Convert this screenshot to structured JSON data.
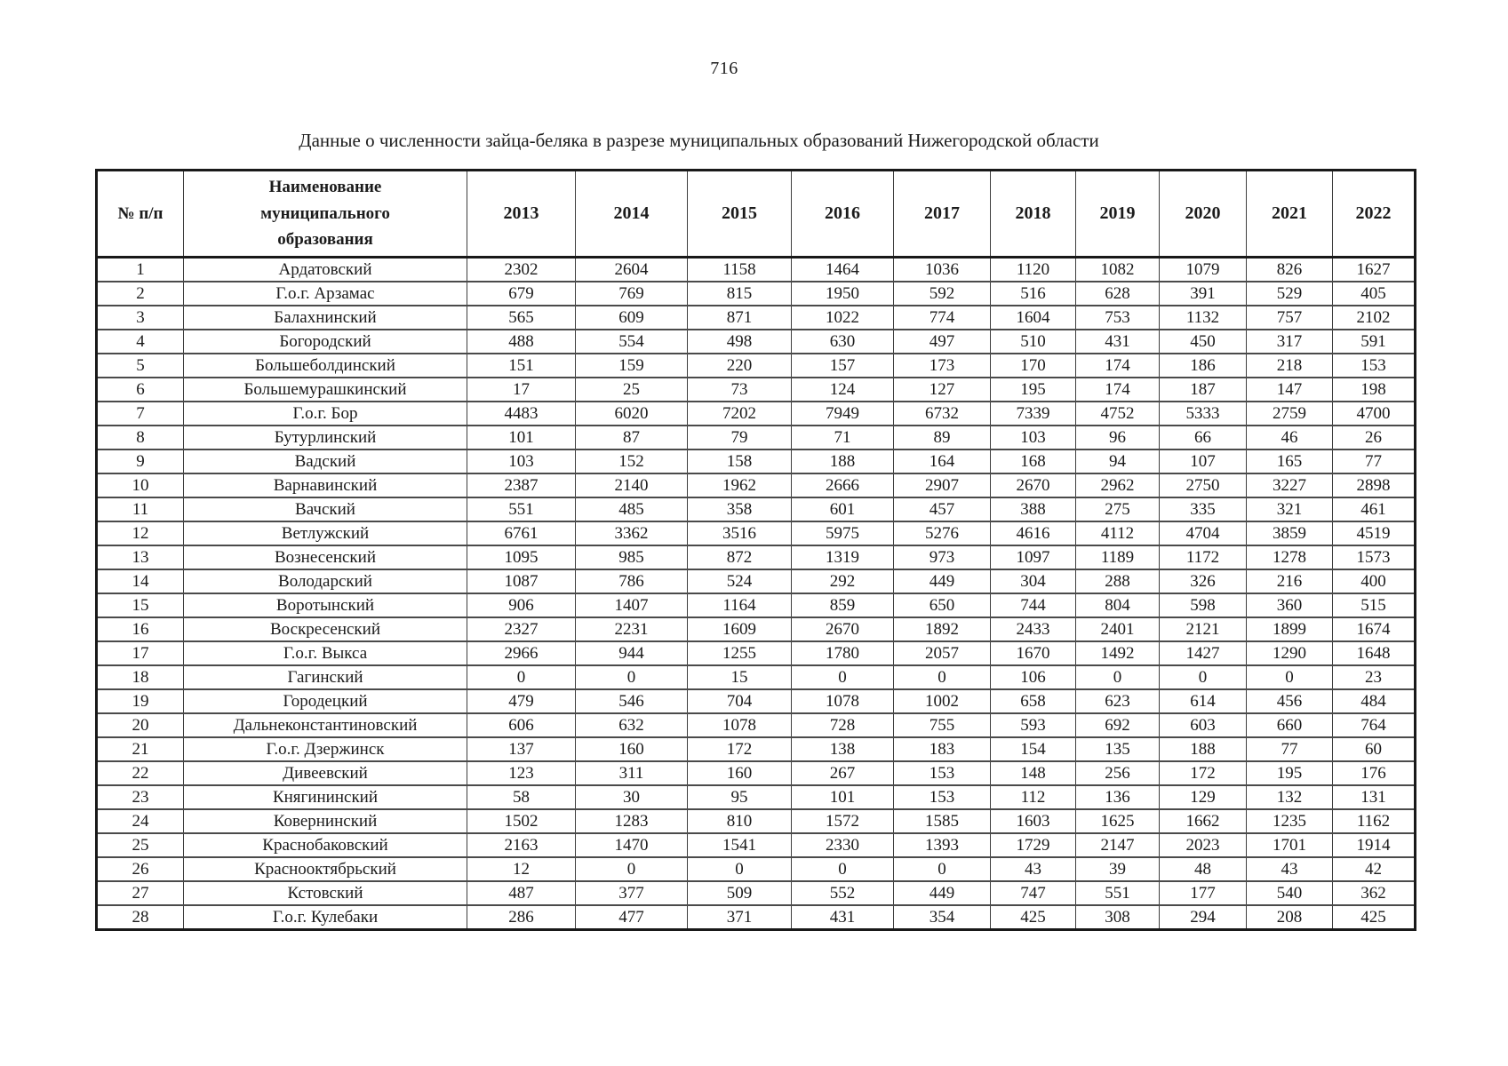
{
  "page": {
    "number": "716",
    "title": "Данные о численности зайца-беляка в разрезе муниципальных образований Нижегородской области"
  },
  "table": {
    "header": {
      "num_label": "№ п/п",
      "name_label": "Наименование\nмуниципального\nобразования",
      "years": [
        "2013",
        "2014",
        "2015",
        "2016",
        "2017",
        "2018",
        "2019",
        "2020",
        "2021",
        "2022"
      ]
    },
    "rows": [
      {
        "n": "1",
        "name": "Ардатовский",
        "values": [
          "2302",
          "2604",
          "1158",
          "1464",
          "1036",
          "1120",
          "1082",
          "1079",
          "826",
          "1627"
        ]
      },
      {
        "n": "2",
        "name": "Г.о.г. Арзамас",
        "values": [
          "679",
          "769",
          "815",
          "1950",
          "592",
          "516",
          "628",
          "391",
          "529",
          "405"
        ]
      },
      {
        "n": "3",
        "name": "Балахнинский",
        "values": [
          "565",
          "609",
          "871",
          "1022",
          "774",
          "1604",
          "753",
          "1132",
          "757",
          "2102"
        ]
      },
      {
        "n": "4",
        "name": "Богородский",
        "values": [
          "488",
          "554",
          "498",
          "630",
          "497",
          "510",
          "431",
          "450",
          "317",
          "591"
        ]
      },
      {
        "n": "5",
        "name": "Большеболдинский",
        "values": [
          "151",
          "159",
          "220",
          "157",
          "173",
          "170",
          "174",
          "186",
          "218",
          "153"
        ]
      },
      {
        "n": "6",
        "name": "Большемурашкинский",
        "values": [
          "17",
          "25",
          "73",
          "124",
          "127",
          "195",
          "174",
          "187",
          "147",
          "198"
        ]
      },
      {
        "n": "7",
        "name": "Г.о.г. Бор",
        "values": [
          "4483",
          "6020",
          "7202",
          "7949",
          "6732",
          "7339",
          "4752",
          "5333",
          "2759",
          "4700"
        ]
      },
      {
        "n": "8",
        "name": "Бутурлинский",
        "values": [
          "101",
          "87",
          "79",
          "71",
          "89",
          "103",
          "96",
          "66",
          "46",
          "26"
        ]
      },
      {
        "n": "9",
        "name": "Вадский",
        "values": [
          "103",
          "152",
          "158",
          "188",
          "164",
          "168",
          "94",
          "107",
          "165",
          "77"
        ]
      },
      {
        "n": "10",
        "name": "Варнавинский",
        "values": [
          "2387",
          "2140",
          "1962",
          "2666",
          "2907",
          "2670",
          "2962",
          "2750",
          "3227",
          "2898"
        ]
      },
      {
        "n": "11",
        "name": "Вачский",
        "values": [
          "551",
          "485",
          "358",
          "601",
          "457",
          "388",
          "275",
          "335",
          "321",
          "461"
        ]
      },
      {
        "n": "12",
        "name": "Ветлужский",
        "values": [
          "6761",
          "3362",
          "3516",
          "5975",
          "5276",
          "4616",
          "4112",
          "4704",
          "3859",
          "4519"
        ]
      },
      {
        "n": "13",
        "name": "Вознесенский",
        "values": [
          "1095",
          "985",
          "872",
          "1319",
          "973",
          "1097",
          "1189",
          "1172",
          "1278",
          "1573"
        ]
      },
      {
        "n": "14",
        "name": "Володарский",
        "values": [
          "1087",
          "786",
          "524",
          "292",
          "449",
          "304",
          "288",
          "326",
          "216",
          "400"
        ]
      },
      {
        "n": "15",
        "name": "Воротынский",
        "values": [
          "906",
          "1407",
          "1164",
          "859",
          "650",
          "744",
          "804",
          "598",
          "360",
          "515"
        ]
      },
      {
        "n": "16",
        "name": "Воскресенский",
        "values": [
          "2327",
          "2231",
          "1609",
          "2670",
          "1892",
          "2433",
          "2401",
          "2121",
          "1899",
          "1674"
        ]
      },
      {
        "n": "17",
        "name": "Г.о.г. Выкса",
        "values": [
          "2966",
          "944",
          "1255",
          "1780",
          "2057",
          "1670",
          "1492",
          "1427",
          "1290",
          "1648"
        ]
      },
      {
        "n": "18",
        "name": "Гагинский",
        "values": [
          "0",
          "0",
          "15",
          "0",
          "0",
          "106",
          "0",
          "0",
          "0",
          "23"
        ]
      },
      {
        "n": "19",
        "name": "Городецкий",
        "values": [
          "479",
          "546",
          "704",
          "1078",
          "1002",
          "658",
          "623",
          "614",
          "456",
          "484"
        ]
      },
      {
        "n": "20",
        "name": "Дальнеконстантиновский",
        "values": [
          "606",
          "632",
          "1078",
          "728",
          "755",
          "593",
          "692",
          "603",
          "660",
          "764"
        ]
      },
      {
        "n": "21",
        "name": "Г.о.г. Дзержинск",
        "values": [
          "137",
          "160",
          "172",
          "138",
          "183",
          "154",
          "135",
          "188",
          "77",
          "60"
        ]
      },
      {
        "n": "22",
        "name": "Дивеевский",
        "values": [
          "123",
          "311",
          "160",
          "267",
          "153",
          "148",
          "256",
          "172",
          "195",
          "176"
        ]
      },
      {
        "n": "23",
        "name": "Княгининский",
        "values": [
          "58",
          "30",
          "95",
          "101",
          "153",
          "112",
          "136",
          "129",
          "132",
          "131"
        ]
      },
      {
        "n": "24",
        "name": "Ковернинский",
        "values": [
          "1502",
          "1283",
          "810",
          "1572",
          "1585",
          "1603",
          "1625",
          "1662",
          "1235",
          "1162"
        ]
      },
      {
        "n": "25",
        "name": "Краснобаковский",
        "values": [
          "2163",
          "1470",
          "1541",
          "2330",
          "1393",
          "1729",
          "2147",
          "2023",
          "1701",
          "1914"
        ]
      },
      {
        "n": "26",
        "name": "Краснооктябрьский",
        "values": [
          "12",
          "0",
          "0",
          "0",
          "0",
          "43",
          "39",
          "48",
          "43",
          "42"
        ]
      },
      {
        "n": "27",
        "name": "Кстовский",
        "values": [
          "487",
          "377",
          "509",
          "552",
          "449",
          "747",
          "551",
          "177",
          "540",
          "362"
        ]
      },
      {
        "n": "28",
        "name": "Г.о.г. Кулебаки",
        "values": [
          "286",
          "477",
          "371",
          "431",
          "354",
          "425",
          "308",
          "294",
          "208",
          "425"
        ]
      }
    ]
  },
  "colors": {
    "ink": "#1b1b1b",
    "grid": "#3e3e3e",
    "background": "#ffffff"
  }
}
